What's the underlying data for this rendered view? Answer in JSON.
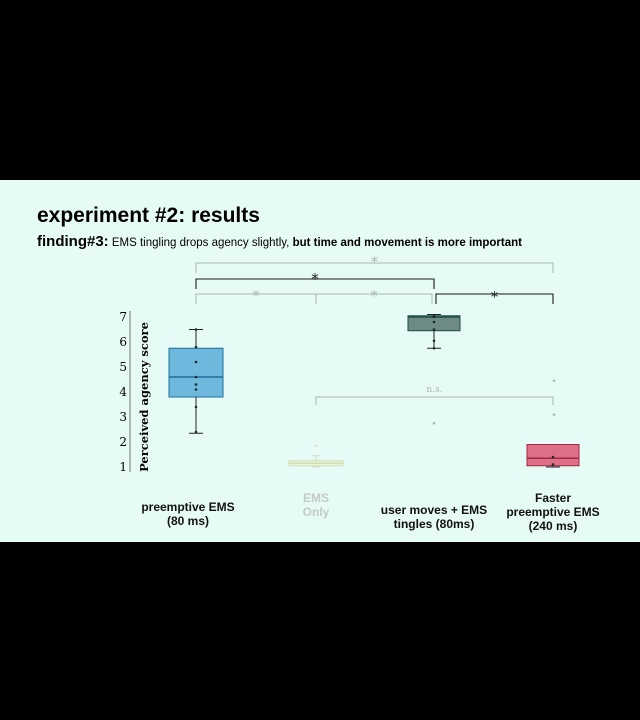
{
  "slide": {
    "title": "experiment #2: results",
    "finding_label": "finding#3:",
    "finding_text": "EMS tingling drops agency slightly,",
    "finding_bold": "but time and movement  is more important"
  },
  "chart_data": {
    "type": "box",
    "ylabel": "Perceived agency score",
    "yticks": [
      1,
      2,
      3,
      4,
      5,
      6,
      7
    ],
    "ylim": [
      0.5,
      7.5
    ],
    "categories": [
      {
        "label": [
          "preemptive EMS",
          "(80 ms)"
        ],
        "faded": false,
        "color": "#6db8dc",
        "stroke": "#1f6f9a",
        "q1": 3.8,
        "median": 4.6,
        "q3": 5.75,
        "whisker_low": 2.35,
        "whisker_high": 6.5,
        "points": [
          2.4,
          3.4,
          4.1,
          4.3,
          4.6,
          5.2,
          5.8,
          6.5
        ],
        "outliers": []
      },
      {
        "label": [
          "EMS",
          "Only"
        ],
        "faded": true,
        "color": "#eef4cf",
        "stroke": "#c8d4a0",
        "q1": 1.05,
        "median": 1.15,
        "q3": 1.25,
        "whisker_low": 1.0,
        "whisker_high": 1.45,
        "points": [],
        "outliers": [
          1.85
        ]
      },
      {
        "label": [
          "user moves + EMS",
          "tingles (80ms)"
        ],
        "faded": false,
        "color": "#6e8a84",
        "stroke": "#1a4e42",
        "q1": 6.45,
        "median": 7.0,
        "q3": 7.05,
        "whisker_low": 5.75,
        "whisker_high": 7.1,
        "points": [
          5.75,
          6.05,
          6.5,
          6.8,
          7.0,
          7.05
        ],
        "outliers": [
          2.75
        ]
      },
      {
        "label": [
          "Faster",
          "preemptive EMS",
          "(240 ms)"
        ],
        "faded": false,
        "color": "#de6f86",
        "stroke": "#a02a45",
        "q1": 1.05,
        "median": 1.35,
        "q3": 1.9,
        "whisker_low": 1.0,
        "whisker_high": 1.9,
        "points": [
          1.1,
          1.4
        ],
        "outliers": [
          3.1,
          4.45
        ]
      }
    ],
    "significance": [
      {
        "from": 0,
        "to": 3,
        "label": "*",
        "faded": true
      },
      {
        "from": 0,
        "to": 2,
        "label": "*",
        "faded": false
      },
      {
        "from": 0,
        "to": 1,
        "label": "*",
        "faded": true
      },
      {
        "from": 1,
        "to": 2,
        "label": "*",
        "faded": true
      },
      {
        "from": 2,
        "to": 3,
        "label": "*",
        "faded": false
      },
      {
        "from": 1,
        "to": 3,
        "label": "n.s.",
        "faded": true
      }
    ]
  }
}
